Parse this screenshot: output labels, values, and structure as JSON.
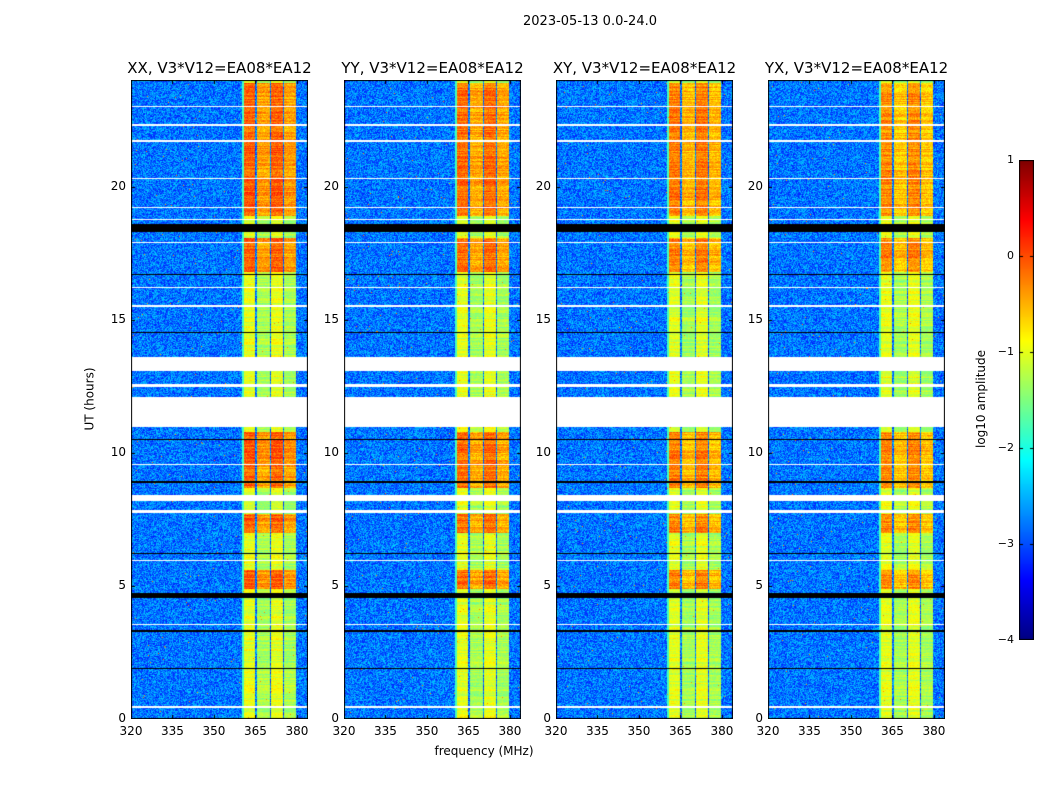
{
  "suptitle": "2023-05-13 0.0-24.0",
  "xlabel": "frequency (MHz)",
  "ylabel": "UT (hours)",
  "colorbar_label": "log10 amplitude",
  "chart_data": {
    "type": "heatmap",
    "panels": [
      {
        "title": "XX, V3*V12=EA08*EA12",
        "peak": 0.25
      },
      {
        "title": "YY, V3*V12=EA08*EA12",
        "peak": 0.15
      },
      {
        "title": "XY, V3*V12=EA08*EA12",
        "peak": 0.0
      },
      {
        "title": "YX, V3*V12=EA08*EA12",
        "peak": -0.1
      }
    ],
    "xlim": [
      320,
      384
    ],
    "ylim": [
      0,
      24
    ],
    "xticks": [
      "320",
      "335",
      "350",
      "365",
      "380"
    ],
    "xtick_values": [
      320,
      335,
      350,
      365,
      380
    ],
    "yticks": [
      "0",
      "5",
      "10",
      "15",
      "20"
    ],
    "ytick_values": [
      0,
      5,
      10,
      15,
      20
    ],
    "colorbar": {
      "range": [
        -4,
        1
      ],
      "ticks": [
        "1",
        "0",
        "−1",
        "−2",
        "−3",
        "−4"
      ],
      "tick_values": [
        1,
        0,
        -1,
        -2,
        -3,
        -4
      ],
      "colormap": "jet"
    },
    "background_log_amp": -2.8,
    "band_log_amp": -1.0,
    "subbands_mhz": [
      [
        360.5,
        364.8
      ],
      [
        365.3,
        369.9
      ],
      [
        370.4,
        374.8
      ],
      [
        375.3,
        379.6
      ]
    ],
    "flagged_hours": [
      [
        11.0,
        12.1
      ],
      [
        13.1,
        13.6
      ],
      [
        12.5,
        12.6
      ],
      [
        8.2,
        8.45
      ],
      [
        7.75,
        7.85
      ],
      [
        3.55,
        3.6
      ],
      [
        0.45,
        0.5
      ],
      [
        5.95,
        6.0
      ],
      [
        9.55,
        9.6
      ],
      [
        19.2,
        19.25
      ],
      [
        20.3,
        20.35
      ],
      [
        21.7,
        21.75
      ],
      [
        23.0,
        23.05
      ],
      [
        22.3,
        22.35
      ],
      [
        15.5,
        15.55
      ],
      [
        16.2,
        16.25
      ],
      [
        18.75,
        18.8
      ],
      [
        17.9,
        17.95
      ]
    ],
    "zero_hours": [
      [
        4.55,
        4.75
      ],
      [
        18.3,
        18.6
      ],
      [
        14.5,
        14.55
      ],
      [
        1.9,
        1.95
      ],
      [
        6.2,
        6.25
      ],
      [
        8.9,
        8.95
      ],
      [
        16.7,
        16.75
      ],
      [
        3.3,
        3.35
      ],
      [
        10.5,
        10.55
      ]
    ],
    "bright_hours": [
      [
        4.9,
        5.6
      ],
      [
        7.0,
        7.7
      ],
      [
        16.8,
        18.1
      ],
      [
        8.7,
        10.8
      ],
      [
        18.9,
        23.9
      ]
    ]
  }
}
